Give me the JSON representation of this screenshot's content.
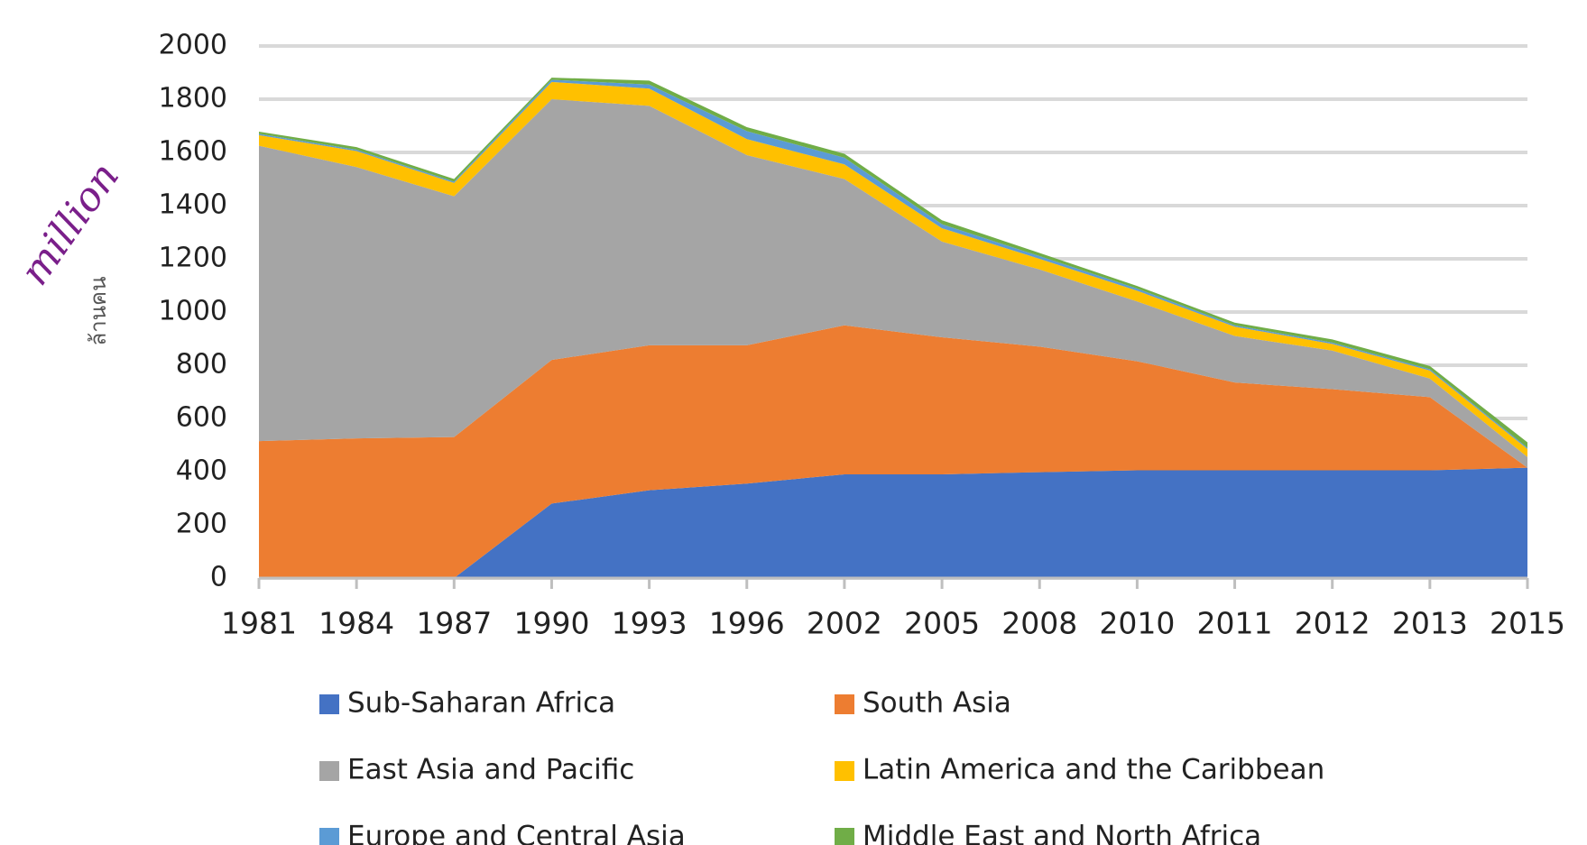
{
  "chart_data": {
    "type": "stacked_area",
    "y_label": "ล้านคน",
    "annotation": "million",
    "categories": [
      "1981",
      "1984",
      "1987",
      "1990",
      "1993",
      "1996",
      "2002",
      "2005",
      "2008",
      "2010",
      "2011",
      "2012",
      "2013",
      "2015"
    ],
    "series": [
      {
        "name": "Sub-Saharan Africa",
        "color": "#4472c4",
        "values": [
          0,
          0,
          0,
          280,
          330,
          355,
          390,
          390,
          398,
          405,
          405,
          405,
          405,
          415
        ]
      },
      {
        "name": "South Asia",
        "color": "#ed7d31",
        "values": [
          515,
          525,
          530,
          540,
          545,
          520,
          560,
          515,
          472,
          410,
          330,
          305,
          275,
          0
        ]
      },
      {
        "name": "East Asia and Pacific",
        "color": "#a5a5a5",
        "values": [
          1110,
          1020,
          905,
          980,
          900,
          715,
          550,
          360,
          290,
          225,
          175,
          145,
          70,
          40
        ]
      },
      {
        "name": "Latin America and the Caribbean",
        "color": "#ffc000",
        "values": [
          40,
          60,
          50,
          65,
          65,
          60,
          55,
          50,
          40,
          40,
          35,
          25,
          30,
          30
        ]
      },
      {
        "name": "Europe and Central Asia",
        "color": "#5b9bd5",
        "values": [
          5,
          5,
          5,
          8,
          15,
          30,
          25,
          15,
          10,
          8,
          5,
          5,
          5,
          5
        ]
      },
      {
        "name": "Middle East and North Africa",
        "color": "#70ad47",
        "values": [
          8,
          10,
          10,
          8,
          15,
          15,
          15,
          15,
          12,
          10,
          10,
          12,
          12,
          20
        ]
      }
    ],
    "ylim": [
      0,
      2000
    ],
    "yticks": [
      0,
      200,
      400,
      600,
      800,
      1000,
      1200,
      1400,
      1600,
      1800,
      2000
    ],
    "grid": true
  }
}
